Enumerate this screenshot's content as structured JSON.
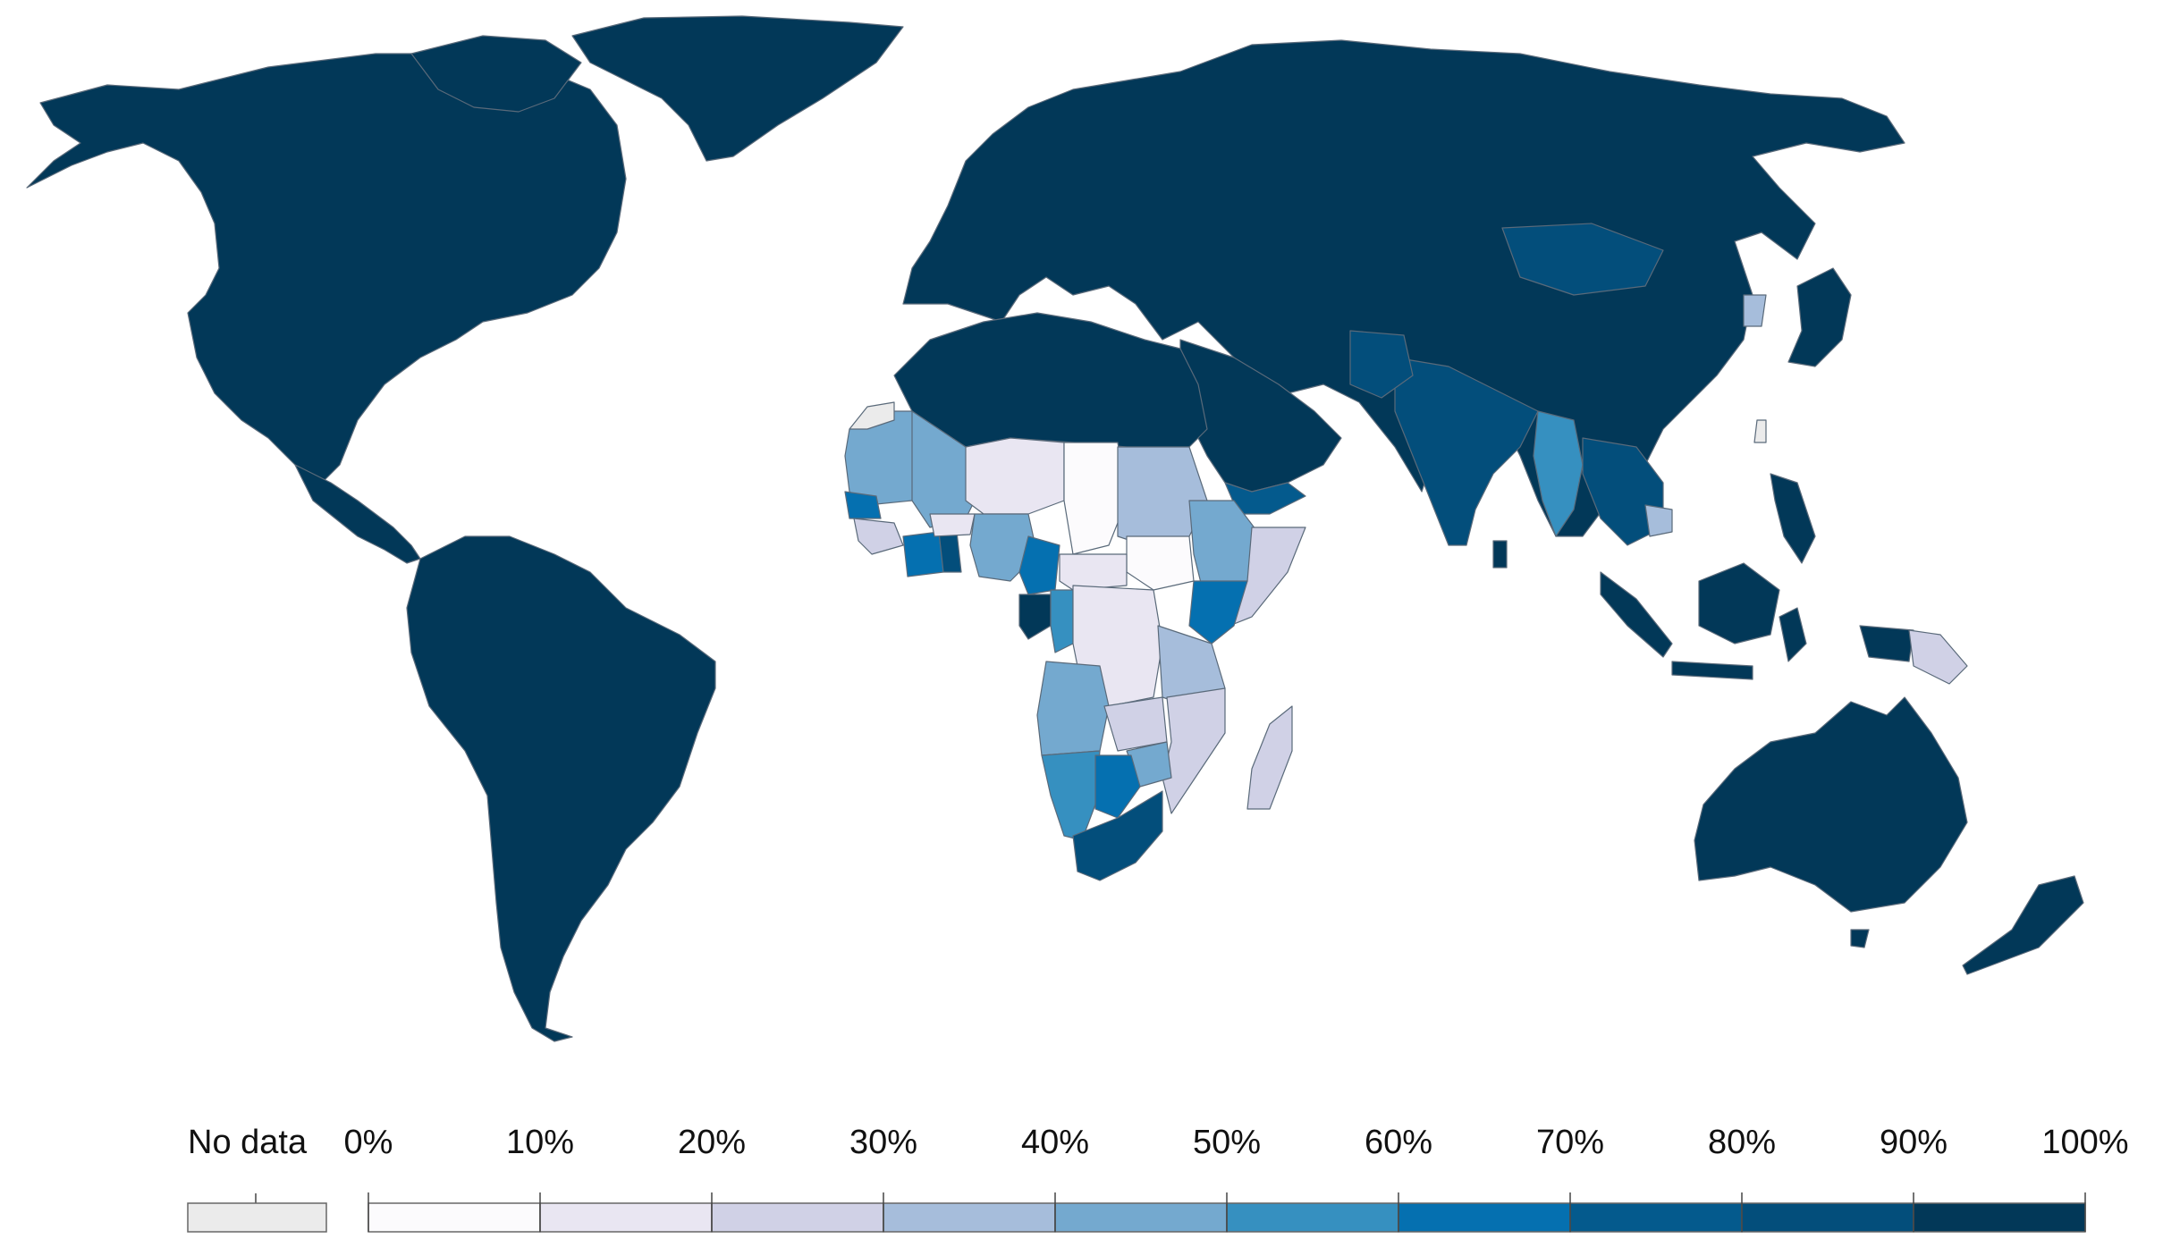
{
  "legend": {
    "no_data_label": "No data",
    "no_data_color": "#ebebeb",
    "tick_labels": [
      "0%",
      "10%",
      "20%",
      "30%",
      "40%",
      "50%",
      "60%",
      "70%",
      "80%",
      "90%",
      "100%"
    ],
    "bins": [
      {
        "range": [
          0,
          10
        ],
        "color": "#fcfbfd"
      },
      {
        "range": [
          10,
          20
        ],
        "color": "#e9e6f2"
      },
      {
        "range": [
          20,
          30
        ],
        "color": "#d0d1e6"
      },
      {
        "range": [
          30,
          40
        ],
        "color": "#a6bddb"
      },
      {
        "range": [
          40,
          50
        ],
        "color": "#74a9cf"
      },
      {
        "range": [
          50,
          60
        ],
        "color": "#3690c0"
      },
      {
        "range": [
          60,
          70
        ],
        "color": "#0570b0"
      },
      {
        "range": [
          70,
          80
        ],
        "color": "#045a8d"
      },
      {
        "range": [
          80,
          90
        ],
        "color": "#034e7b"
      },
      {
        "range": [
          90,
          100
        ],
        "color": "#023858"
      }
    ]
  },
  "colors": {
    "background": "#ffffff",
    "border": "#5a6a7a"
  }
}
